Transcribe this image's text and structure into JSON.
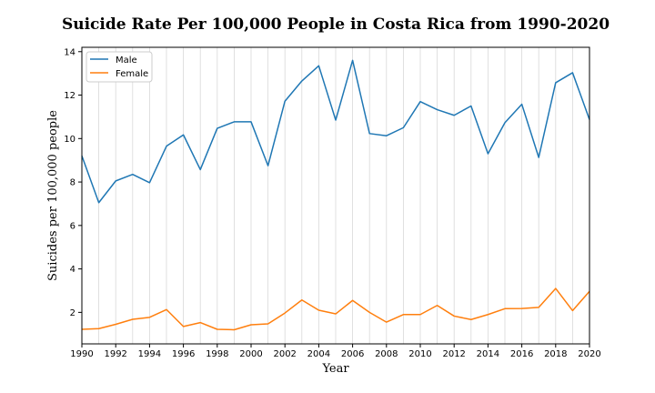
{
  "chart_data": {
    "type": "line",
    "title": "Suicide Rate Per 100,000 People in Costa Rica from 1990-2020",
    "xlabel": "Year",
    "ylabel": "Suicides per 100,000 people",
    "xlim": [
      1990,
      2020
    ],
    "ylim": [
      0.55,
      14.2
    ],
    "x_ticks": [
      1990,
      1992,
      1994,
      1996,
      1998,
      2000,
      2002,
      2004,
      2006,
      2008,
      2010,
      2012,
      2014,
      2016,
      2018,
      2020
    ],
    "y_ticks": [
      2,
      4,
      6,
      8,
      10,
      12,
      14
    ],
    "grid": "vertical, every year",
    "legend_position": "top-left",
    "x": [
      1990,
      1991,
      1992,
      1993,
      1994,
      1995,
      1996,
      1997,
      1998,
      1999,
      2000,
      2001,
      2002,
      2003,
      2004,
      2005,
      2006,
      2007,
      2008,
      2009,
      2010,
      2011,
      2012,
      2013,
      2014,
      2015,
      2016,
      2017,
      2018,
      2019,
      2020
    ],
    "series": [
      {
        "name": "Male",
        "color": "#1f77b4",
        "values": [
          9.2,
          7.05,
          8.05,
          8.35,
          7.97,
          9.65,
          10.17,
          8.57,
          10.47,
          10.77,
          10.77,
          8.75,
          11.72,
          12.65,
          13.35,
          10.85,
          13.6,
          10.23,
          10.13,
          10.5,
          11.7,
          11.33,
          11.07,
          11.5,
          9.3,
          10.73,
          11.58,
          9.13,
          12.57,
          13.03,
          10.87
        ]
      },
      {
        "name": "Female",
        "color": "#ff7f0e",
        "values": [
          1.22,
          1.25,
          1.45,
          1.68,
          1.77,
          2.13,
          1.35,
          1.53,
          1.22,
          1.2,
          1.43,
          1.47,
          1.97,
          2.57,
          2.1,
          1.93,
          2.55,
          2.0,
          1.55,
          1.9,
          1.9,
          2.32,
          1.83,
          1.67,
          1.9,
          2.17,
          2.18,
          2.23,
          3.1,
          2.08,
          2.97
        ]
      }
    ]
  }
}
